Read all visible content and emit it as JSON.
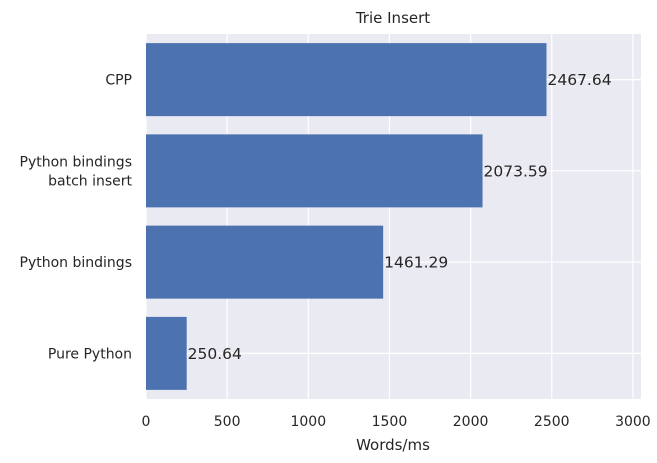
{
  "chart_data": {
    "type": "bar",
    "orientation": "horizontal",
    "title": "Trie Insert",
    "xlabel": "Words/ms",
    "ylabel": "",
    "categories": [
      [
        "Pure Python"
      ],
      [
        "Python bindings"
      ],
      [
        "Python bindings",
        "batch insert"
      ],
      [
        "CPP"
      ]
    ],
    "values": [
      250.64,
      1461.29,
      2073.59,
      2467.64
    ],
    "data_labels": [
      "250.64",
      "1461.29",
      "2073.59",
      "2467.64"
    ],
    "xlim": [
      0,
      3050
    ],
    "xticks": [
      0,
      500,
      1000,
      1500,
      2000,
      2500,
      3000
    ],
    "grid": true,
    "colors": {
      "bar": "#4c72b0",
      "background": "#eaeaf2",
      "grid": "#ffffff"
    }
  }
}
